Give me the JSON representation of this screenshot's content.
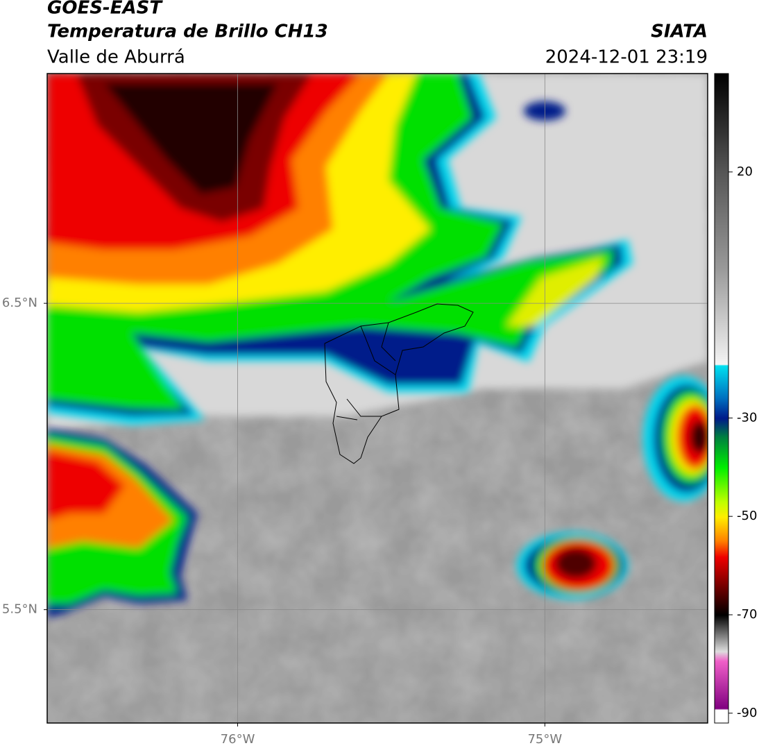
{
  "header": {
    "title": "GOES-EAST",
    "subtitle": "Temperatura de Brillo CH13",
    "region": "Valle de Aburrá",
    "source": "SIATA",
    "datetime": "2024-12-01 23:19"
  },
  "map": {
    "lonlim": [
      -76.62,
      -74.47
    ],
    "latlim": [
      5.13,
      7.25
    ],
    "lonticks": [
      {
        "value": -76,
        "label": "76°W"
      },
      {
        "value": -75,
        "label": "75°W"
      }
    ],
    "latticks": [
      {
        "value": 6.5,
        "label": "6.5°N"
      },
      {
        "value": 5.5,
        "label": "5.5°N"
      }
    ],
    "grid": true
  },
  "colorbar": {
    "lim": [
      -92,
      40
    ],
    "ticks": [
      20,
      -30,
      -50,
      -70,
      -90
    ]
  }
}
